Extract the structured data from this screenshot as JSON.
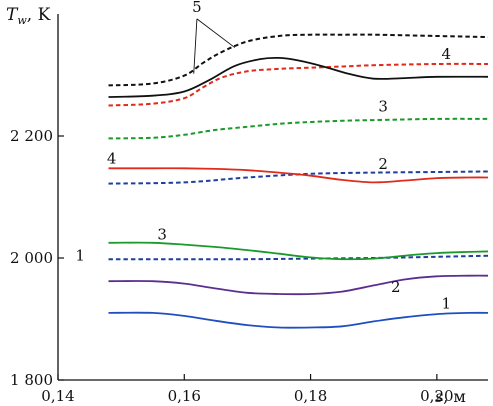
{
  "chart_data": {
    "type": "line",
    "ylabel": "T",
    "ylabel_subscript": "w",
    "ylabel_unit": ", K",
    "xlabel": "s",
    "xlabel_unit": ", м",
    "xlim": [
      0.14,
      0.21
    ],
    "ylim": [
      1800,
      2400
    ],
    "x_ticks": [
      {
        "value": 0.14,
        "label": "0,14"
      },
      {
        "value": 0.16,
        "label": "0,16"
      },
      {
        "value": 0.18,
        "label": "0,18"
      },
      {
        "value": 0.2,
        "label": "0,20"
      }
    ],
    "y_ticks": [
      {
        "value": 1800,
        "label": "1 800"
      },
      {
        "value": 2000,
        "label": "2 000"
      },
      {
        "value": 2200,
        "label": "2 200"
      }
    ],
    "series": [
      {
        "label": "1",
        "style": "solid",
        "color": "#1f4fbf",
        "x": [
          0.148,
          0.155,
          0.16,
          0.165,
          0.17,
          0.175,
          0.18,
          0.185,
          0.19,
          0.195,
          0.2,
          0.205,
          0.209
        ],
        "y": [
          1910,
          1910,
          1905,
          1897,
          1890,
          1886,
          1886,
          1888,
          1896,
          1903,
          1908,
          1910,
          1910
        ]
      },
      {
        "label": "1",
        "style": "dashed",
        "color": "#1f3f9f",
        "x": [
          0.148,
          0.16,
          0.17,
          0.18,
          0.19,
          0.2,
          0.209
        ],
        "y": [
          1998,
          1998,
          1998,
          1999,
          2000,
          2002,
          2004
        ]
      },
      {
        "label": "2",
        "style": "solid",
        "color": "#5a2f8f",
        "x": [
          0.148,
          0.155,
          0.16,
          0.165,
          0.17,
          0.175,
          0.18,
          0.185,
          0.19,
          0.195,
          0.2,
          0.205,
          0.209
        ],
        "y": [
          1962,
          1962,
          1958,
          1950,
          1943,
          1941,
          1941,
          1945,
          1955,
          1965,
          1970,
          1971,
          1971
        ]
      },
      {
        "label": "2",
        "style": "dashed",
        "color": "#1f3f9f",
        "x": [
          0.148,
          0.16,
          0.17,
          0.18,
          0.19,
          0.2,
          0.209
        ],
        "y": [
          2122,
          2124,
          2132,
          2138,
          2140,
          2141,
          2142
        ]
      },
      {
        "label": "3",
        "style": "solid",
        "color": "#1a9a2a",
        "x": [
          0.148,
          0.155,
          0.16,
          0.165,
          0.17,
          0.175,
          0.18,
          0.185,
          0.19,
          0.195,
          0.2,
          0.205,
          0.209
        ],
        "y": [
          2025,
          2025,
          2022,
          2018,
          2013,
          2007,
          2001,
          1998,
          1999,
          2004,
          2008,
          2010,
          2011
        ]
      },
      {
        "label": "3",
        "style": "dashed",
        "color": "#1a9a2a",
        "x": [
          0.148,
          0.155,
          0.16,
          0.165,
          0.17,
          0.175,
          0.18,
          0.185,
          0.19,
          0.2,
          0.209
        ],
        "y": [
          2196,
          2197,
          2202,
          2210,
          2215,
          2220,
          2223,
          2225,
          2226,
          2228,
          2228
        ]
      },
      {
        "label": "4",
        "style": "solid",
        "color": "#e02a1a",
        "x": [
          0.148,
          0.155,
          0.16,
          0.165,
          0.17,
          0.175,
          0.18,
          0.185,
          0.19,
          0.195,
          0.2,
          0.205,
          0.209
        ],
        "y": [
          2147,
          2147,
          2147,
          2146,
          2144,
          2140,
          2135,
          2128,
          2124,
          2127,
          2131,
          2132,
          2132
        ]
      },
      {
        "label": "4",
        "style": "dashed",
        "color": "#e02a1a",
        "x": [
          0.148,
          0.155,
          0.16,
          0.163,
          0.166,
          0.17,
          0.175,
          0.18,
          0.185,
          0.19,
          0.2,
          0.209
        ],
        "y": [
          2250,
          2253,
          2262,
          2280,
          2296,
          2306,
          2310,
          2312,
          2314,
          2316,
          2318,
          2318
        ]
      },
      {
        "label": "5",
        "style": "solid",
        "color": "#111111",
        "x": [
          0.148,
          0.155,
          0.16,
          0.164,
          0.168,
          0.172,
          0.175,
          0.178,
          0.182,
          0.186,
          0.19,
          0.195,
          0.2,
          0.209
        ],
        "y": [
          2264,
          2266,
          2273,
          2292,
          2315,
          2326,
          2328,
          2324,
          2314,
          2302,
          2294,
          2295,
          2297,
          2297
        ]
      },
      {
        "label": "5",
        "style": "dashed",
        "color": "#111111",
        "x": [
          0.148,
          0.155,
          0.16,
          0.163,
          0.166,
          0.17,
          0.175,
          0.18,
          0.185,
          0.19,
          0.2,
          0.209
        ],
        "y": [
          2283,
          2286,
          2299,
          2320,
          2338,
          2355,
          2364,
          2366,
          2366,
          2366,
          2364,
          2362
        ]
      }
    ],
    "annotations": [
      {
        "text": "1",
        "x": 0.2015,
        "y": 1917
      },
      {
        "text": "1",
        "x": 0.1435,
        "y": 1996
      },
      {
        "text": "2",
        "x": 0.1935,
        "y": 1944
      },
      {
        "text": "2",
        "x": 0.1915,
        "y": 2146
      },
      {
        "text": "3",
        "x": 0.1565,
        "y": 2030
      },
      {
        "text": "3",
        "x": 0.1915,
        "y": 2240
      },
      {
        "text": "4",
        "x": 0.1485,
        "y": 2155
      },
      {
        "text": "4",
        "x": 0.2015,
        "y": 2326
      },
      {
        "text": "5",
        "x": 0.162,
        "y": 2403
      }
    ],
    "arrow_source": {
      "x": 0.162,
      "y": 2392
    },
    "arrow_targets": [
      {
        "x": 0.1615,
        "y": 2302
      },
      {
        "x": 0.168,
        "y": 2345
      }
    ]
  }
}
